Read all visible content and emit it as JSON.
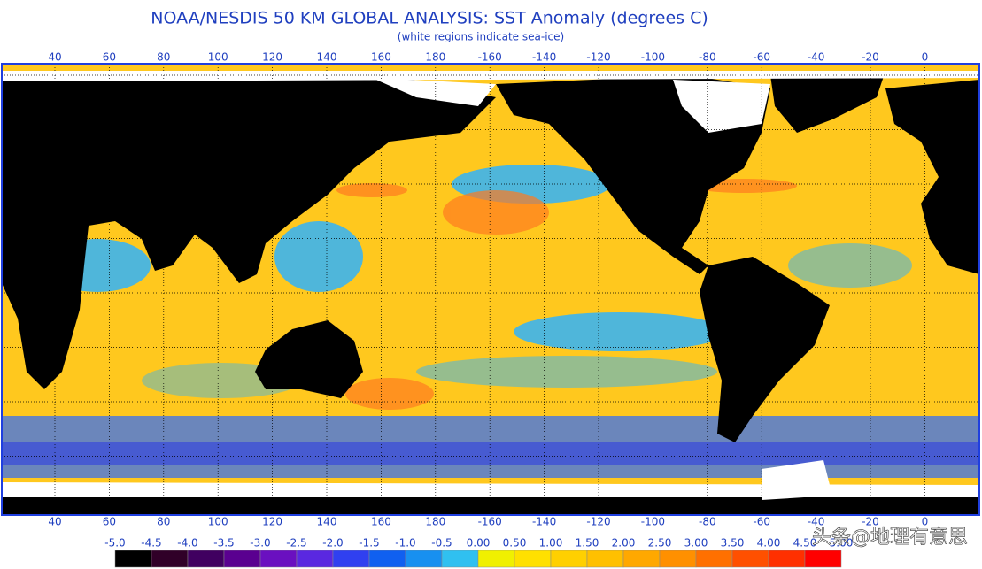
{
  "header": {
    "title": "NOAA/NESDIS 50 KM GLOBAL ANALYSIS: SST Anomaly (degrees C)",
    "subtitle": "(white regions indicate sea-ice)"
  },
  "map": {
    "lon_labels": [
      "40",
      "60",
      "80",
      "100",
      "120",
      "140",
      "160",
      "180",
      "-160",
      "-140",
      "-120",
      "-100",
      "-80",
      "-60",
      "-40",
      "-20",
      "0"
    ]
  },
  "colorbar": {
    "labels": [
      "-5.0",
      "-4.5",
      "-4.0",
      "-3.5",
      "-3.0",
      "-2.5",
      "-2.0",
      "-1.5",
      "-1.0",
      "-0.5",
      "0.00",
      "0.50",
      "1.00",
      "1.50",
      "2.00",
      "2.50",
      "3.00",
      "3.50",
      "4.00",
      "4.50",
      "5.00"
    ],
    "colors": [
      "#000000",
      "#300028",
      "#400060",
      "#5a0090",
      "#6a10c0",
      "#5a28e0",
      "#3040f0",
      "#1060f0",
      "#1890f0",
      "#30c0f0",
      "#f0f000",
      "#ffe000",
      "#ffd000",
      "#ffc000",
      "#ffa800",
      "#ff9000",
      "#ff7000",
      "#ff5000",
      "#ff3000",
      "#ff0000"
    ]
  },
  "watermark": "头条@地理有意思"
}
